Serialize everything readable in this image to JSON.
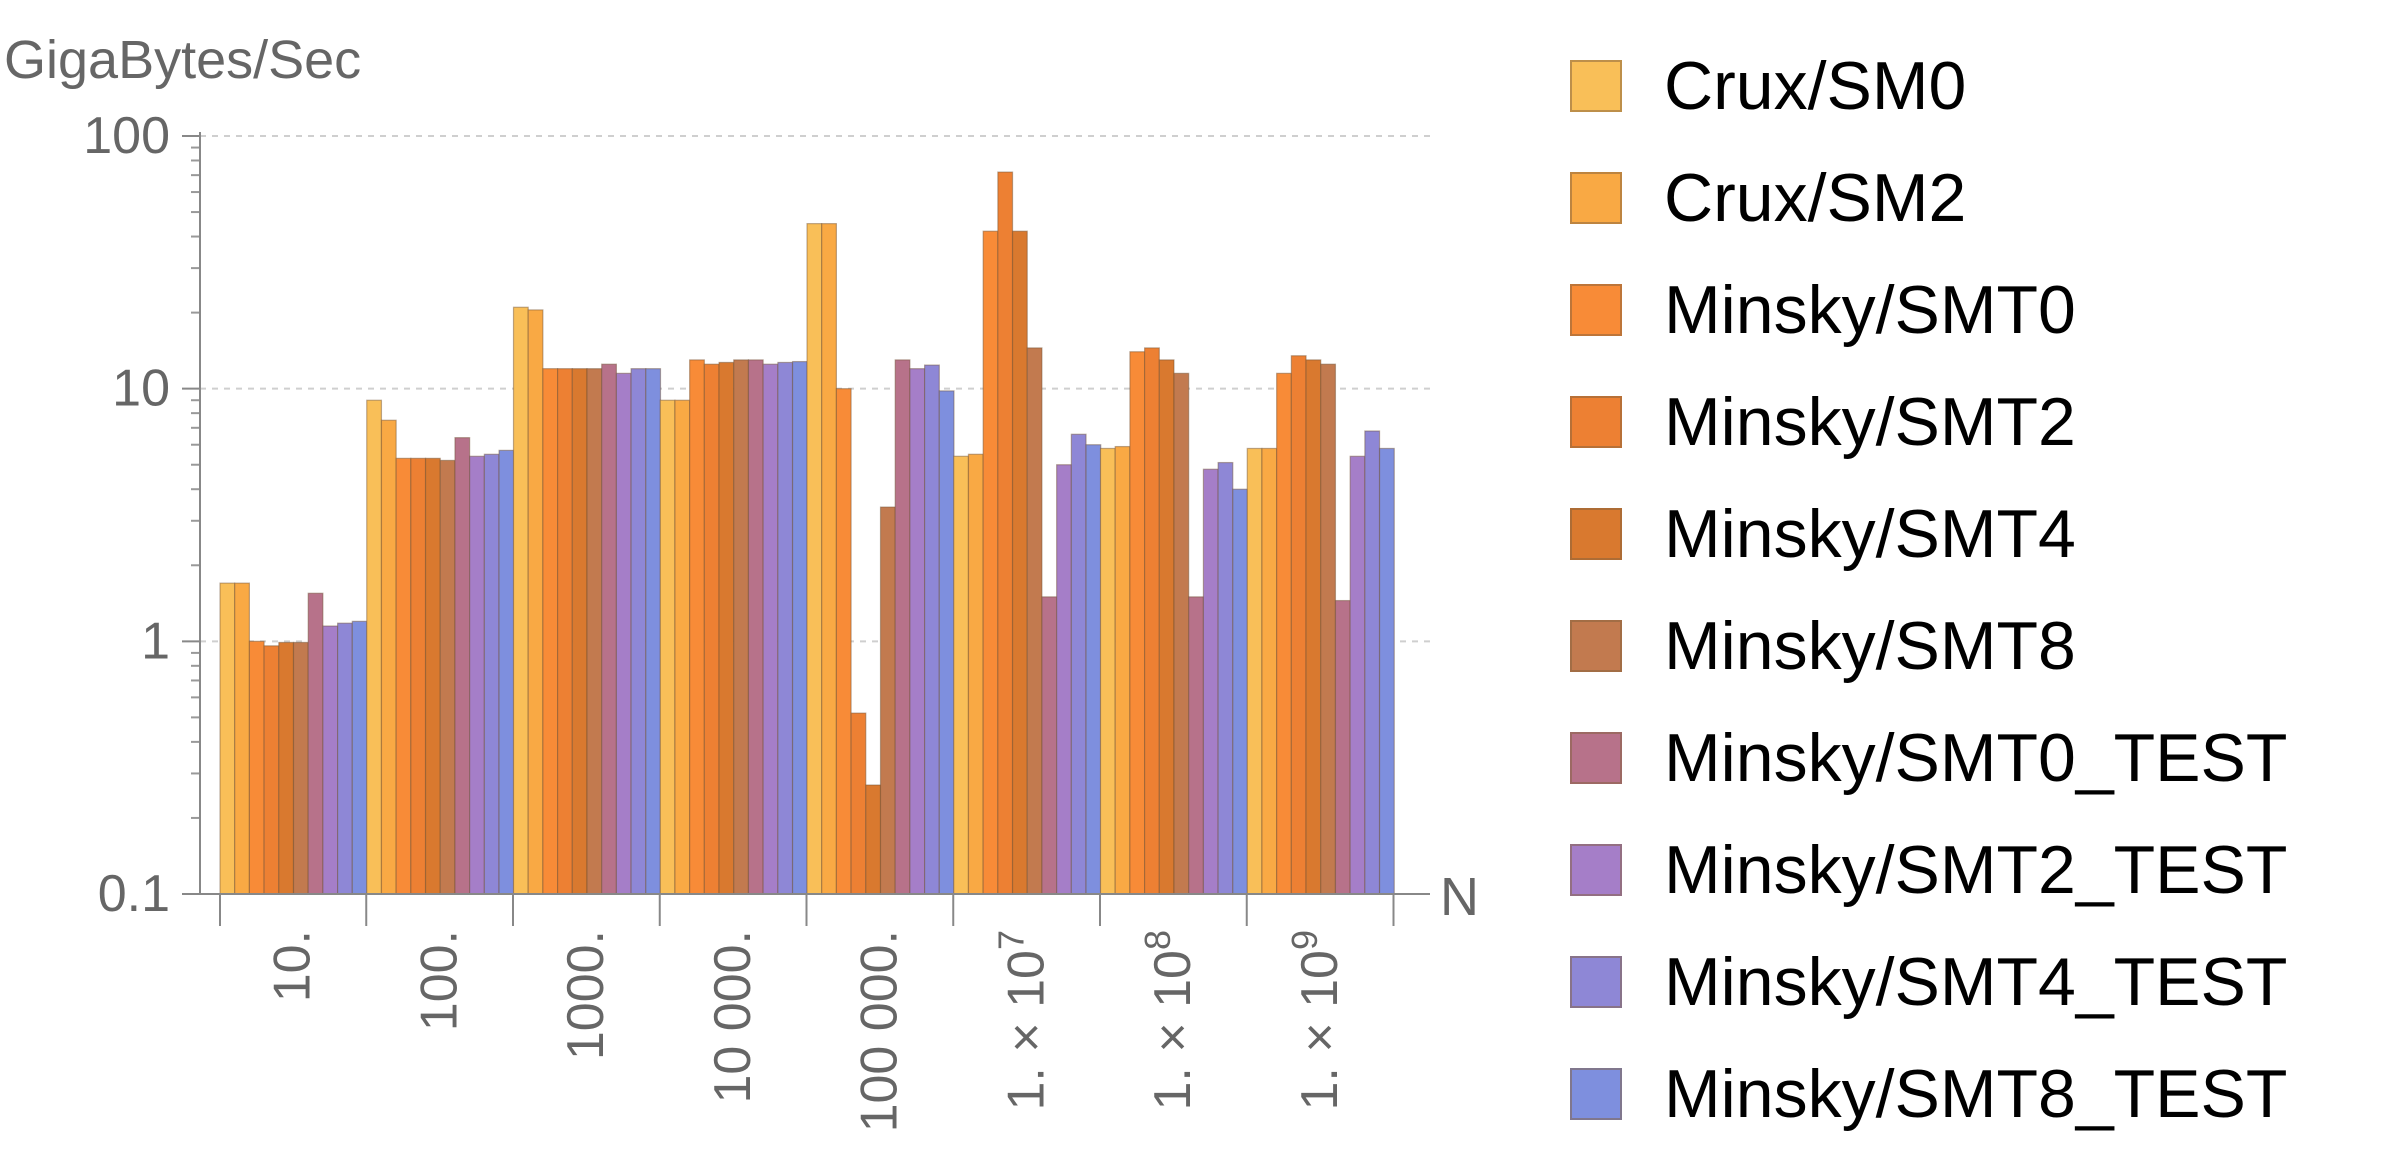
{
  "chart_data": {
    "type": "bar",
    "ylabel": "GigaBytes/Sec",
    "xlabel": "N",
    "y_scale": "log",
    "ylim": [
      0.1,
      100
    ],
    "y_ticks": [
      {
        "value": 0.1,
        "label": "0.1"
      },
      {
        "value": 1,
        "label": "1"
      },
      {
        "value": 10,
        "label": "10"
      },
      {
        "value": 100,
        "label": "100"
      }
    ],
    "grid": "horizontal dashed at major ticks",
    "legend_position": "right",
    "categories": [
      {
        "label": "10."
      },
      {
        "label": "100."
      },
      {
        "label": "1000."
      },
      {
        "label": "10 000."
      },
      {
        "label": "100 000."
      },
      {
        "label": "1. × 10",
        "sup": "7"
      },
      {
        "label": "1. × 10",
        "sup": "8"
      },
      {
        "label": "1. × 10",
        "sup": "9"
      }
    ],
    "series": [
      {
        "name": "Crux/SM0",
        "color": "#F9BF58",
        "values": [
          1.7,
          9.0,
          21.0,
          9.0,
          45.0,
          5.4,
          5.8,
          5.8
        ]
      },
      {
        "name": "Crux/SM2",
        "color": "#F9A944",
        "values": [
          1.7,
          7.5,
          20.5,
          9.0,
          45.0,
          5.5,
          5.9,
          5.8
        ]
      },
      {
        "name": "Minsky/SMT0",
        "color": "#F88B37",
        "values": [
          1.0,
          5.3,
          12.0,
          13.0,
          10.0,
          42.0,
          14.0,
          11.5
        ]
      },
      {
        "name": "Minsky/SMT2",
        "color": "#ED8033",
        "values": [
          0.96,
          5.3,
          12.0,
          12.5,
          0.52,
          72.0,
          14.5,
          13.5
        ]
      },
      {
        "name": "Minsky/SMT4",
        "color": "#D9792F",
        "values": [
          0.99,
          5.3,
          12.0,
          12.7,
          0.27,
          42.0,
          13.0,
          13.0
        ]
      },
      {
        "name": "Minsky/SMT8",
        "color": "#C27A4F",
        "values": [
          0.99,
          5.2,
          12.0,
          13.0,
          3.4,
          14.5,
          11.5,
          12.5
        ]
      },
      {
        "name": "Minsky/SMT0_TEST",
        "color": "#B7728A",
        "values": [
          1.55,
          6.4,
          12.5,
          13.0,
          13.0,
          1.5,
          1.5,
          1.45
        ]
      },
      {
        "name": "Minsky/SMT2_TEST",
        "color": "#A57EC8",
        "values": [
          1.15,
          5.4,
          11.5,
          12.5,
          12.0,
          5.0,
          4.8,
          5.4
        ]
      },
      {
        "name": "Minsky/SMT4_TEST",
        "color": "#8E87D6",
        "values": [
          1.18,
          5.5,
          12.0,
          12.7,
          12.4,
          6.6,
          5.1,
          6.8
        ]
      },
      {
        "name": "Minsky/SMT8_TEST",
        "color": "#7E8FDE",
        "values": [
          1.2,
          5.7,
          12.0,
          12.8,
          9.8,
          6.0,
          4.0,
          5.8
        ]
      }
    ]
  }
}
